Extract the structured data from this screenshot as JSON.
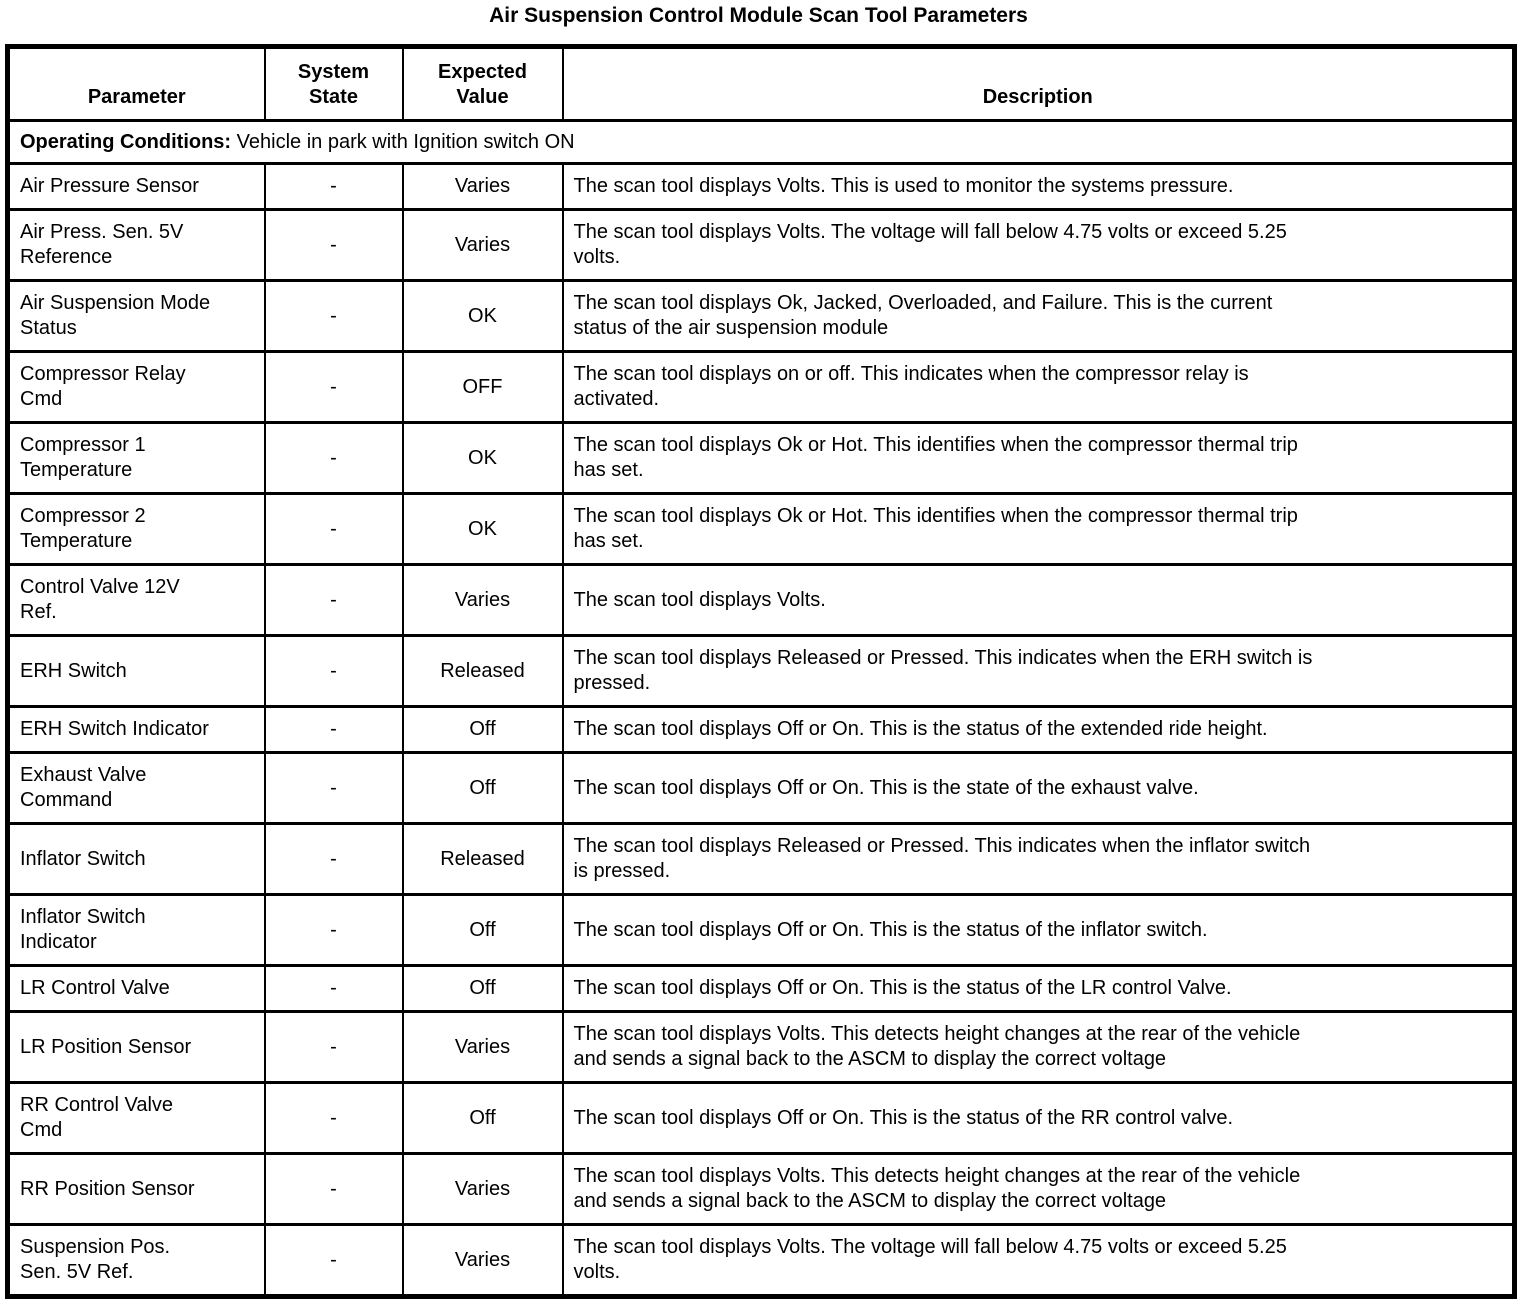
{
  "page_title": "Air Suspension Control Module Scan Tool Parameters",
  "table": {
    "columns": [
      "Parameter",
      "System\nState",
      "Expected\nValue",
      "Description"
    ],
    "operating_conditions": {
      "label": "Operating Conditions:",
      "text": "Vehicle in park with Ignition switch ON"
    },
    "rows": [
      {
        "parameter": "Air Pressure Sensor",
        "system_state": "-",
        "expected_value": "Varies",
        "description": "The scan tool displays Volts. This is used to monitor the systems pressure."
      },
      {
        "parameter": "Air Press. Sen. 5V\nReference",
        "system_state": "-",
        "expected_value": "Varies",
        "description": "The scan tool displays Volts. The voltage will fall below 4.75 volts or exceed 5.25\nvolts."
      },
      {
        "parameter": "Air Suspension Mode\nStatus",
        "system_state": "-",
        "expected_value": "OK",
        "description": "The scan tool displays Ok, Jacked, Overloaded, and Failure. This is the current\nstatus of the air suspension module"
      },
      {
        "parameter": "Compressor Relay\nCmd",
        "system_state": "-",
        "expected_value": "OFF",
        "description": "The scan tool displays on or off. This indicates when the compressor relay is\nactivated."
      },
      {
        "parameter": "Compressor 1\nTemperature",
        "system_state": "-",
        "expected_value": "OK",
        "description": "The scan tool displays Ok or Hot. This identifies when the compressor thermal trip\nhas set."
      },
      {
        "parameter": "Compressor 2\nTemperature",
        "system_state": "-",
        "expected_value": "OK",
        "description": "The scan tool displays Ok or Hot. This identifies when the compressor thermal trip\nhas set."
      },
      {
        "parameter": "Control Valve 12V\nRef.",
        "system_state": "-",
        "expected_value": "Varies",
        "description": "The scan tool displays Volts."
      },
      {
        "parameter": "ERH Switch",
        "system_state": "-",
        "expected_value": "Released",
        "description": "The scan tool displays Released or Pressed. This indicates when the ERH switch is\npressed."
      },
      {
        "parameter": "ERH Switch Indicator",
        "system_state": "-",
        "expected_value": "Off",
        "description": "The scan tool displays Off or On. This is the status of the extended ride height."
      },
      {
        "parameter": "Exhaust Valve\nCommand",
        "system_state": "-",
        "expected_value": "Off",
        "description": "The scan tool displays Off or On. This is the state of the exhaust valve."
      },
      {
        "parameter": "Inflator Switch",
        "system_state": "-",
        "expected_value": "Released",
        "description": "The scan tool displays Released or Pressed. This indicates when the inflator switch\nis pressed."
      },
      {
        "parameter": "Inflator Switch\nIndicator",
        "system_state": "-",
        "expected_value": "Off",
        "description": "The scan tool displays Off or On. This is the status of the inflator switch."
      },
      {
        "parameter": "LR Control Valve",
        "system_state": "-",
        "expected_value": "Off",
        "description": "The scan tool displays Off or On. This is the status of the LR control Valve."
      },
      {
        "parameter": "LR Position Sensor",
        "system_state": "-",
        "expected_value": "Varies",
        "description": "The scan tool displays Volts. This detects height changes at the rear of the vehicle\nand sends a signal back to the ASCM to display the correct voltage"
      },
      {
        "parameter": "RR Control Valve\nCmd",
        "system_state": "-",
        "expected_value": "Off",
        "description": "The scan tool displays Off or On. This is the status of the RR control valve."
      },
      {
        "parameter": "RR Position Sensor",
        "system_state": "-",
        "expected_value": "Varies",
        "description": "The scan tool displays Volts. This detects height changes at the rear of the vehicle\nand sends a signal back to the ASCM to display the correct voltage"
      },
      {
        "parameter": "Suspension Pos.\nSen. 5V Ref.",
        "system_state": "-",
        "expected_value": "Varies",
        "description": "The scan tool displays Volts. The voltage will fall below 4.75 volts or exceed 5.25\nvolts."
      }
    ]
  }
}
